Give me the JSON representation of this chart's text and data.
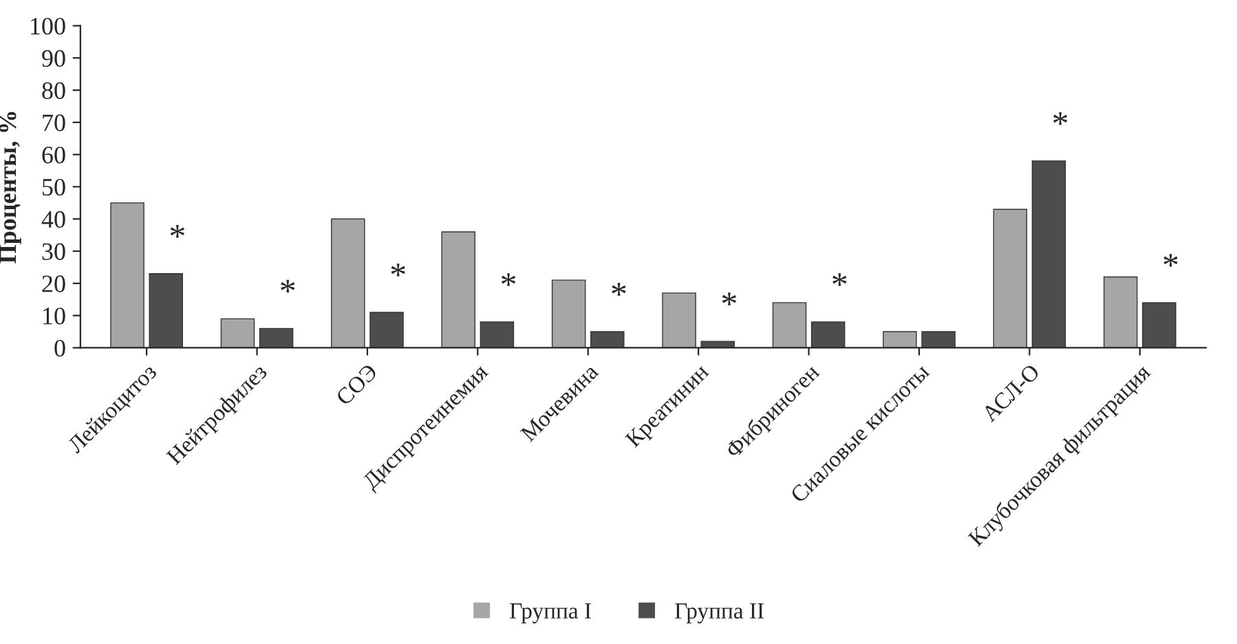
{
  "chart_data": {
    "type": "bar",
    "ylabel": "Проценты, %",
    "categories": [
      "Лейкоцитоз",
      "Нейтрофилез",
      "СОЭ",
      "Диспротеинемия",
      "Мочевина",
      "Креатинин",
      "Фибриноген",
      "Сиаловые кислоты",
      "АСЛ-О",
      "Клубочковая фильтрация"
    ],
    "series": [
      {
        "name": "Группа I",
        "color": "#a6a6a6",
        "values": [
          45,
          9,
          40,
          36,
          21,
          17,
          14,
          5,
          43,
          22
        ]
      },
      {
        "name": "Группа II",
        "color": "#4d4d4d",
        "values": [
          23,
          6,
          11,
          8,
          5,
          2,
          8,
          5,
          58,
          14
        ]
      }
    ],
    "ylim": [
      0,
      100
    ],
    "yticks": [
      0,
      10,
      20,
      30,
      40,
      50,
      60,
      70,
      80,
      90,
      100
    ],
    "annotations": [
      {
        "text": "*",
        "x": "Лейкоцитоз",
        "y": 23
      },
      {
        "text": "*",
        "x": "Нейтрофилез",
        "y": 6
      },
      {
        "text": "*",
        "x": "СОЭ",
        "y": 11
      },
      {
        "text": "*",
        "x": "Диспротеинемия",
        "y": 8
      },
      {
        "text": "*",
        "x": "Мочевина",
        "y": 5
      },
      {
        "text": "*",
        "x": "Креатинин",
        "y": 2
      },
      {
        "text": "*",
        "x": "Фибриноген",
        "y": 8
      },
      {
        "text": "*",
        "x": "АСЛ-О",
        "y": 58
      },
      {
        "text": "*",
        "x": "Клубочковая фильтрация",
        "y": 14
      }
    ],
    "legend": "bottom",
    "grid": false
  }
}
